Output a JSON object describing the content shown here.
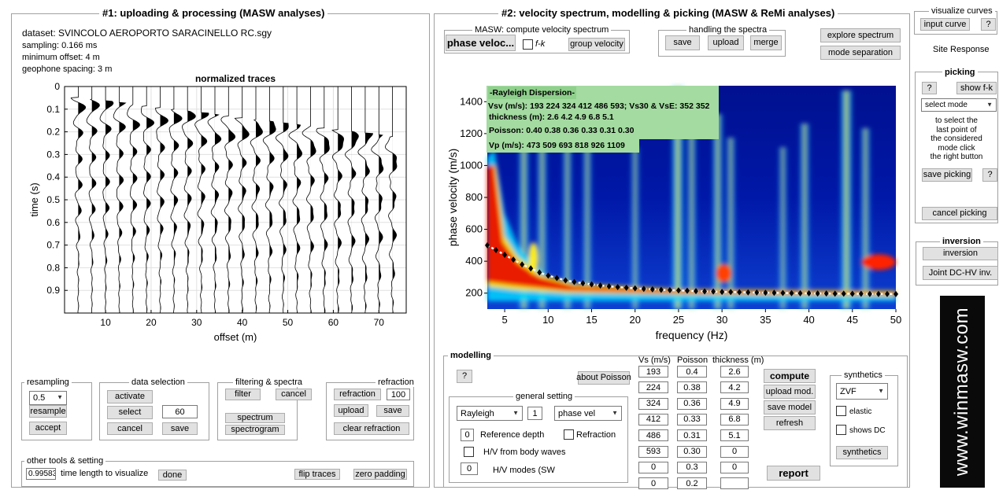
{
  "left": {
    "title": "#1: uploading & processing (MASW analyses)",
    "info": {
      "dataset": "dataset: SVINCOLO AEROPORTO SARACINELLO RC.sgy",
      "sampling": "sampling: 0.166 ms",
      "min_offset": "minimum offset: 4 m",
      "spacing": "geophone spacing: 3 m"
    },
    "resampling": {
      "legend": "resampling",
      "value": "0.5",
      "resample": "resample",
      "accept": "accept"
    },
    "data_selection": {
      "legend": "data selection",
      "activate": "activate",
      "select": "select",
      "select_value": "60",
      "cancel": "cancel",
      "save": "save"
    },
    "filtering": {
      "legend": "filtering & spectra",
      "filter": "filter",
      "cancel": "cancel",
      "spectrum": "spectrum",
      "spectrogram": "spectrogram"
    },
    "refraction": {
      "legend": "refraction",
      "refraction": "refraction",
      "value": "100",
      "upload": "upload",
      "save": "save",
      "clear": "clear refraction"
    },
    "other": {
      "legend": "other tools & setting",
      "time_value": "0.99583",
      "time_label": "time length to visualize",
      "done": "done",
      "flip": "flip traces",
      "zero": "zero padding"
    }
  },
  "traces_chart": {
    "title": "normalized traces",
    "xlabel": "offset (m)",
    "ylabel": "time (s)",
    "xticks": [
      "10",
      "20",
      "30",
      "40",
      "50",
      "60",
      "70"
    ],
    "yticks": [
      "0",
      "0.1",
      "0.2",
      "0.3",
      "0.4",
      "0.5",
      "0.6",
      "0.7",
      "0.8",
      "0.9"
    ]
  },
  "chart_data": [
    {
      "type": "line",
      "title": "normalized traces",
      "xlabel": "offset (m)",
      "ylabel": "time (s)",
      "xlim": [
        1,
        76
      ],
      "ylim": [
        1.0,
        0
      ],
      "trace_offsets": [
        4,
        7,
        10,
        13,
        16,
        19,
        22,
        25,
        28,
        31,
        34,
        37,
        40,
        43,
        46,
        49,
        52,
        55,
        58,
        61,
        64,
        67,
        70,
        73
      ]
    },
    {
      "type": "heatmap",
      "title": "",
      "xlabel": "frequency (Hz)",
      "ylabel": "phase velocity (m/s)",
      "xlim": [
        3,
        50
      ],
      "ylim": [
        100,
        1500
      ],
      "xticks": [
        5,
        10,
        15,
        20,
        25,
        30,
        35,
        40,
        45,
        50
      ],
      "yticks": [
        200,
        400,
        600,
        800,
        1000,
        1200,
        1400
      ],
      "picked_curve": {
        "x": [
          3,
          4,
          5,
          6,
          7,
          8,
          9,
          10,
          11,
          12,
          13,
          14,
          15,
          16,
          17,
          18,
          19,
          20,
          21,
          22,
          23,
          24,
          25,
          26,
          27,
          28,
          29,
          30,
          31,
          32,
          33,
          34,
          35,
          36,
          37,
          38,
          39,
          40,
          41,
          42,
          43,
          44,
          45,
          46,
          47,
          48,
          49,
          50
        ],
        "y": [
          500,
          470,
          440,
          410,
          380,
          355,
          330,
          310,
          295,
          280,
          270,
          262,
          255,
          248,
          243,
          238,
          234,
          230,
          227,
          224,
          221,
          219,
          217,
          215,
          213,
          211,
          210,
          208,
          207,
          206,
          205,
          204,
          203,
          202,
          201,
          200,
          199,
          199,
          198,
          198,
          197,
          197,
          196,
          196,
          195,
          195,
          195,
          194
        ]
      }
    }
  ],
  "right": {
    "title": "#2: velocity spectrum, modelling & picking (MASW & ReMi analyses)",
    "masw": {
      "legend": "MASW: compute velocity spectrum",
      "phase": "phase veloc...",
      "fk": "f-k",
      "group": "group velocity"
    },
    "handling": {
      "legend": "handling the spectra",
      "save": "save",
      "upload": "upload",
      "merge": "merge"
    },
    "explore": "explore spectrum",
    "mode_sep": "mode separation",
    "dispersion": {
      "header": "-Rayleigh Dispersion-",
      "vs": "Vsv (m/s): 193  224  324  412  486  593; Vs30 & VsE: 352  352",
      "thickness": "thickness (m): 2.6     4.2     4.9     6.8     5.1",
      "poisson": "Poisson: 0.40  0.38  0.36  0.33  0.31  0.30",
      "vp": "Vp (m/s): 473  509  693  818  926 1109"
    },
    "modelling": {
      "legend": "modelling",
      "help": "?",
      "about": "about Poisson",
      "general_legend": "general setting",
      "wave": "Rayleigh",
      "mode_num": "1",
      "vel_type": "phase vel",
      "ref_depth_value": "0",
      "ref_depth_label": "Reference depth",
      "refraction_label": "Refraction",
      "hv_body": "H/V from body waves",
      "hv_modes_value": "0",
      "hv_modes_label": "H/V modes (SW",
      "col_vs": "Vs (m/s)",
      "col_poisson": "Poisson",
      "col_thickness": "thickness (m)",
      "rows": [
        {
          "vs": "193",
          "poisson": "0.4",
          "thickness": "2.6"
        },
        {
          "vs": "224",
          "poisson": "0.38",
          "thickness": "4.2"
        },
        {
          "vs": "324",
          "poisson": "0.36",
          "thickness": "4.9"
        },
        {
          "vs": "412",
          "poisson": "0.33",
          "thickness": "6.8"
        },
        {
          "vs": "486",
          "poisson": "0.31",
          "thickness": "5.1"
        },
        {
          "vs": "593",
          "poisson": "0.30",
          "thickness": "0"
        },
        {
          "vs": "0",
          "poisson": "0.3",
          "thickness": "0"
        },
        {
          "vs": "0",
          "poisson": "0.2",
          "thickness": ""
        }
      ],
      "compute": "compute",
      "upload_mod": "upload mod.",
      "save_model": "save model",
      "refresh": "refresh",
      "report": "report",
      "synthetics_legend": "synthetics",
      "syn_type": "ZVF",
      "elastic": "elastic",
      "shows_dc": "shows DC",
      "synthetics_btn": "synthetics"
    }
  },
  "side": {
    "visualize_legend": "visualize curves",
    "input_curve": "input curve",
    "help": "?",
    "site_response": "Site Response",
    "picking_legend": "picking",
    "show_fk": "show f-k",
    "select_mode": "select mode",
    "instructions": [
      "to select the",
      "last point of",
      "the considered",
      "mode click",
      "the right button"
    ],
    "save_picking": "save picking",
    "cancel_picking": "cancel picking",
    "inversion_legend": "inversion",
    "inversion": "inversion",
    "joint": "Joint DC-HV inv.",
    "logo": "www.winmasw.com"
  }
}
